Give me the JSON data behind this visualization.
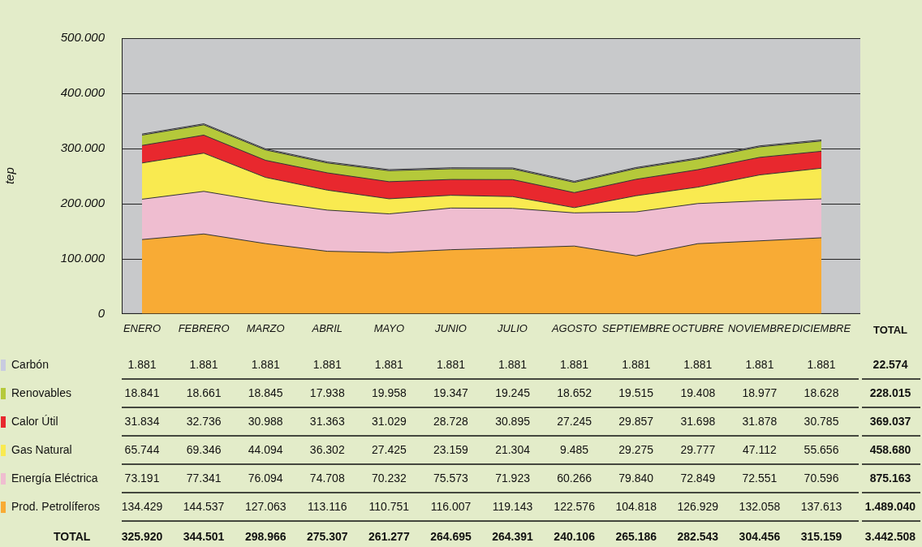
{
  "chart_data": {
    "type": "area",
    "stacked": true,
    "ylabel": "tep",
    "ylim": [
      0,
      500000
    ],
    "yticks": [
      {
        "value": 0,
        "label": "0"
      },
      {
        "value": 100000,
        "label": "100.000"
      },
      {
        "value": 200000,
        "label": "200.000"
      },
      {
        "value": 300000,
        "label": "300.000"
      },
      {
        "value": 400000,
        "label": "400.000"
      },
      {
        "value": 500000,
        "label": "500.000"
      }
    ],
    "grid": "y",
    "legend": "bottom",
    "categories": [
      "ENERO",
      "FEBRERO",
      "MARZO",
      "ABRIL",
      "MAYO",
      "JUNIO",
      "JULIO",
      "AGOSTO",
      "SEPTIEMBRE",
      "OCTUBRE",
      "NOVIEMBRE",
      "DICIEMBRE"
    ],
    "series": [
      {
        "name": "Prod. Petrolíferos",
        "color": "#f8ab35",
        "values": [
          134429,
          144537,
          127063,
          113116,
          110751,
          116007,
          119143,
          122576,
          104818,
          126929,
          132058,
          137613
        ],
        "value_labels": [
          "134.429",
          "144.537",
          "127.063",
          "113.116",
          "110.751",
          "116.007",
          "119.143",
          "122.576",
          "104.818",
          "126.929",
          "132.058",
          "137.613"
        ]
      },
      {
        "name": "Energía Eléctrica",
        "color": "#efbdd0",
        "values": [
          73191,
          77341,
          76094,
          74708,
          70232,
          75573,
          71923,
          60266,
          79840,
          72849,
          72551,
          70596
        ],
        "value_labels": [
          "73.191",
          "77.341",
          "76.094",
          "74.708",
          "70.232",
          "75.573",
          "71.923",
          "60.266",
          "79.840",
          "72.849",
          "72.551",
          "70.596"
        ]
      },
      {
        "name": "Gas Natural",
        "color": "#f9ea50",
        "values": [
          65744,
          69346,
          44094,
          36302,
          27425,
          23159,
          21304,
          9485,
          29275,
          29777,
          47112,
          55656
        ],
        "value_labels": [
          "65.744",
          "69.346",
          "44.094",
          "36.302",
          "27.425",
          "23.159",
          "21.304",
          "9.485",
          "29.275",
          "29.777",
          "47.112",
          "55.656"
        ]
      },
      {
        "name": "Calor Útil",
        "color": "#e8282e",
        "values": [
          31834,
          32736,
          30988,
          31363,
          31029,
          28728,
          30895,
          27245,
          29857,
          31698,
          31878,
          30785
        ],
        "value_labels": [
          "31.834",
          "32.736",
          "30.988",
          "31.363",
          "31.029",
          "28.728",
          "30.895",
          "27.245",
          "29.857",
          "31.698",
          "31.878",
          "30.785"
        ]
      },
      {
        "name": "Renovables",
        "color": "#b5c93a",
        "values": [
          18841,
          18661,
          18845,
          17938,
          19958,
          19347,
          19245,
          18652,
          19515,
          19408,
          18977,
          18628
        ],
        "value_labels": [
          "18.841",
          "18.661",
          "18.845",
          "17.938",
          "19.958",
          "19.347",
          "19.245",
          "18.652",
          "19.515",
          "19.408",
          "18.977",
          "18.628"
        ]
      },
      {
        "name": "Carbón",
        "color": "#c9cbe0",
        "values": [
          1881,
          1881,
          1881,
          1881,
          1881,
          1881,
          1881,
          1881,
          1881,
          1881,
          1881,
          1881
        ],
        "value_labels": [
          "1.881",
          "1.881",
          "1.881",
          "1.881",
          "1.881",
          "1.881",
          "1.881",
          "1.881",
          "1.881",
          "1.881",
          "1.881",
          "1.881"
        ]
      }
    ],
    "annotations": [
      "TOTAL",
      "22.574",
      "228.015",
      "369.037",
      "458.680",
      "875.163",
      "1.489.040",
      "TOTAL",
      "325.920",
      "344.501",
      "298.966",
      "275.307",
      "261.277",
      "264.695",
      "264.391",
      "240.106",
      "265.186",
      "282.543",
      "304.456",
      "315.159",
      "3.442.508"
    ]
  }
}
